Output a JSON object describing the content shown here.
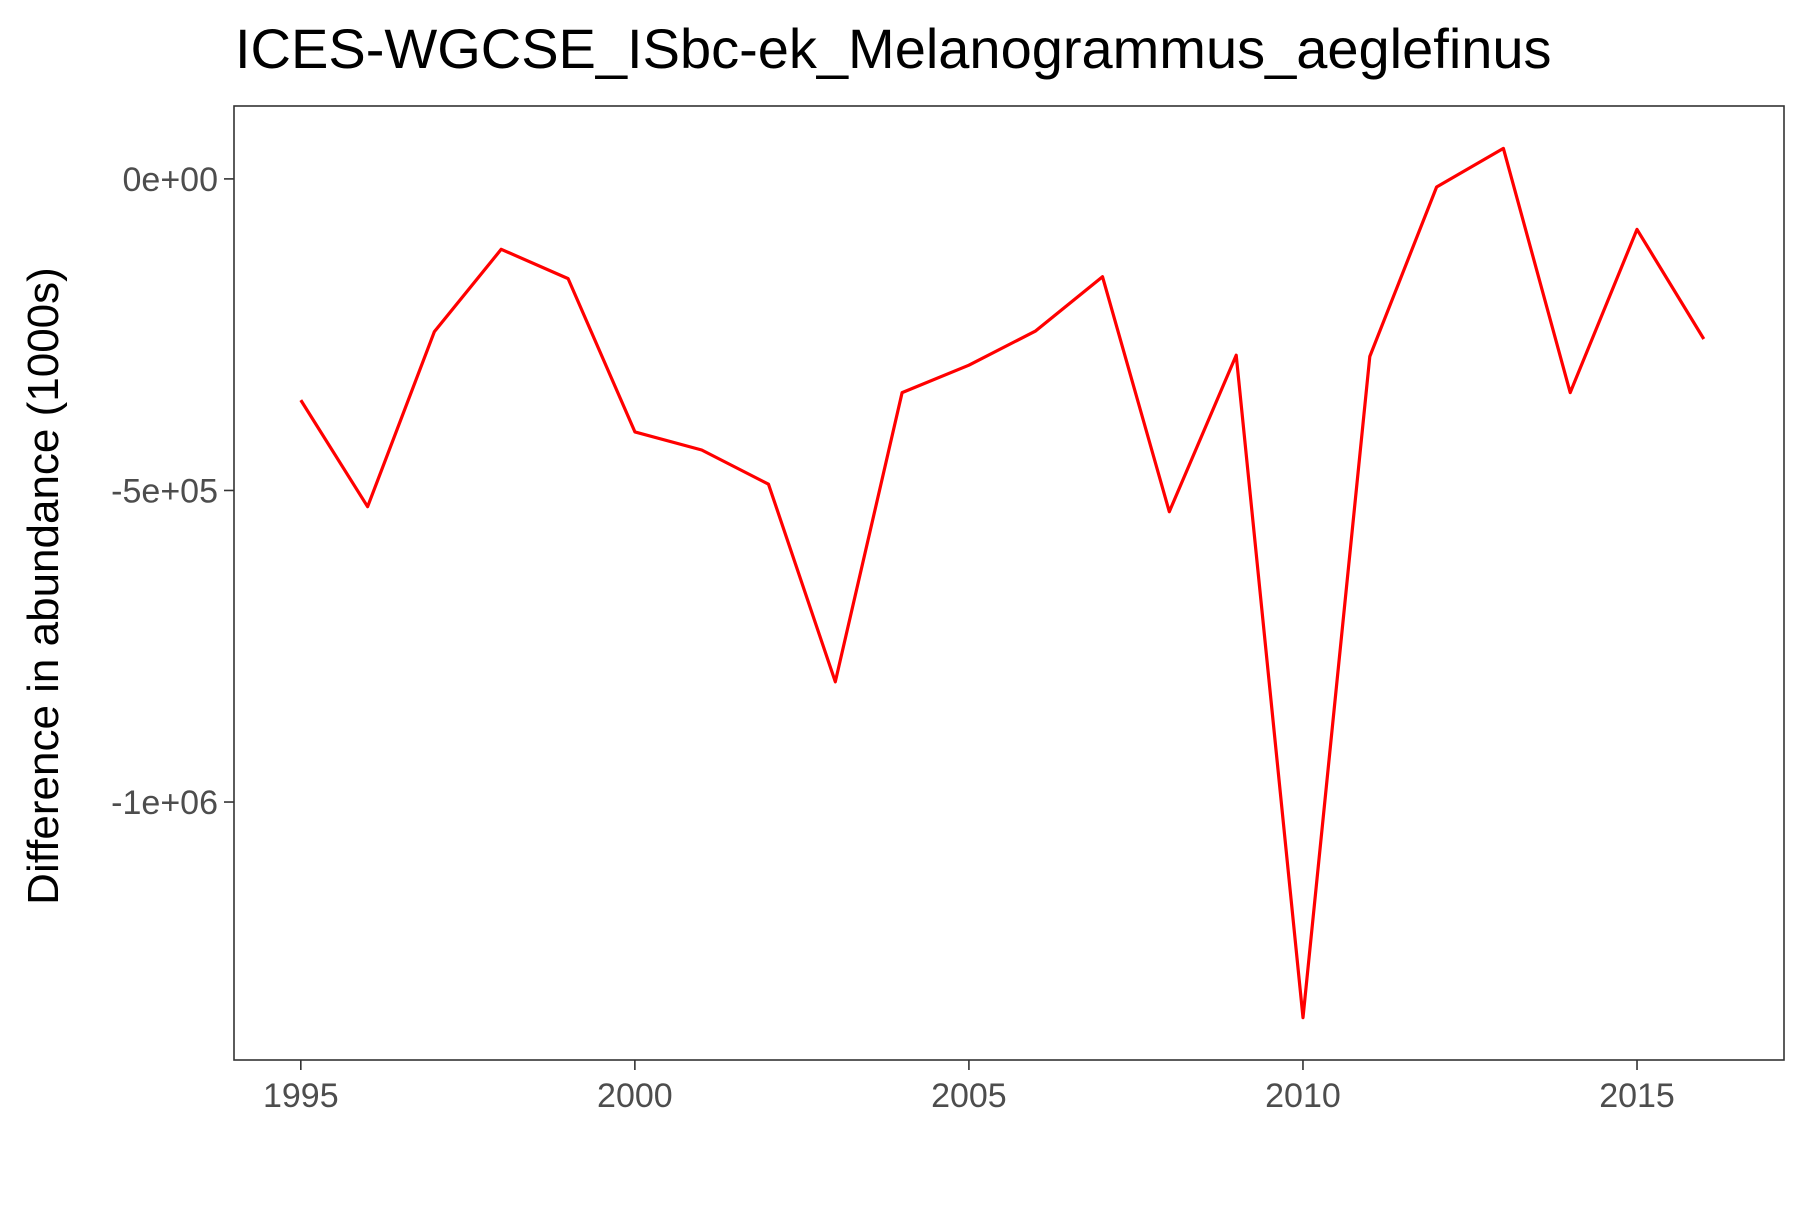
{
  "chart_data": {
    "type": "line",
    "title": "ICES-WGCSE_ISbc-ek_Melanogrammus_aeglefinus",
    "xlabel": "",
    "ylabel": "Difference in abundance (1000s)",
    "xlim": [
      1994,
      2017.2
    ],
    "ylim": [
      -1414000,
      117000
    ],
    "x_ticks": [
      1995,
      2000,
      2005,
      2010,
      2015
    ],
    "x_tick_labels": [
      "1995",
      "2000",
      "2005",
      "2010",
      "2015"
    ],
    "y_ticks": [
      0,
      -500000,
      -1000000
    ],
    "y_tick_labels": [
      "0e+00",
      "-5e+05",
      "-1e+06"
    ],
    "grid": false,
    "series": [
      {
        "color": "#ff0000",
        "x": [
          1995,
          1996,
          1997,
          1998,
          1999,
          2000,
          2001,
          2002,
          2003,
          2004,
          2005,
          2006,
          2007,
          2008,
          2009,
          2010,
          2011,
          2012,
          2013,
          2014,
          2015,
          2016
        ],
        "y": [
          -355000,
          -526000,
          -245000,
          -113000,
          -160000,
          -406000,
          -435000,
          -490000,
          -807000,
          -343000,
          -299000,
          -244000,
          -157000,
          -534000,
          -283000,
          -1346000,
          -285000,
          -13000,
          49000,
          -343000,
          -81000,
          -257000
        ]
      }
    ]
  }
}
